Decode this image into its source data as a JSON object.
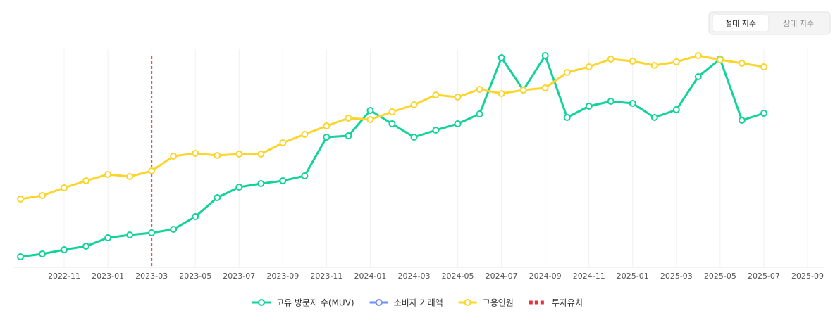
{
  "chart_data": {
    "type": "line",
    "toggle": {
      "options": [
        "절대 지수",
        "상대 지수"
      ],
      "active": 0
    },
    "x": [
      "2022-09",
      "2022-10",
      "2022-11",
      "2022-12",
      "2023-01",
      "2023-02",
      "2023-03",
      "2023-04",
      "2023-05",
      "2023-06",
      "2023-07",
      "2023-08",
      "2023-09",
      "2023-10",
      "2023-11",
      "2023-12",
      "2024-01",
      "2024-02",
      "2024-03",
      "2024-04",
      "2024-05",
      "2024-06",
      "2024-07",
      "2024-08",
      "2024-09",
      "2024-10",
      "2024-11",
      "2024-12",
      "2025-01",
      "2025-02",
      "2025-03",
      "2025-04",
      "2025-05",
      "2025-06",
      "2025-07"
    ],
    "xlim": [
      "2022-09",
      "2025-09"
    ],
    "xticks": [
      "2022-11",
      "2023-01",
      "2023-03",
      "2023-05",
      "2023-07",
      "2023-09",
      "2023-11",
      "2024-01",
      "2024-03",
      "2024-05",
      "2024-07",
      "2024-09",
      "2024-11",
      "2025-01",
      "2025-03",
      "2025-05",
      "2025-07",
      "2025-09"
    ],
    "ylim": [
      0,
      310
    ],
    "series": [
      {
        "name": "고유 방문자 수(MUV)",
        "color": "#12d39a",
        "values": [
          15,
          19,
          25,
          30,
          42,
          46,
          49,
          54,
          72,
          99,
          114,
          119,
          123,
          130,
          185,
          187,
          223,
          204,
          185,
          195,
          204,
          218,
          298,
          252,
          301,
          213,
          229,
          236,
          233,
          213,
          224,
          271,
          296,
          209,
          219
        ]
      },
      {
        "name": "소비자 거래액",
        "color": "#6e8ef5",
        "values": [
          null,
          null,
          null,
          null,
          null,
          null,
          null,
          null,
          null,
          null,
          null,
          null,
          null,
          null,
          null,
          null,
          null,
          null,
          null,
          null,
          null,
          null,
          null,
          null,
          null,
          null,
          null,
          null,
          null,
          null,
          null,
          null,
          null,
          null,
          null
        ]
      },
      {
        "name": "고용인원",
        "color": "#fcd52b",
        "values": [
          97,
          102,
          113,
          123,
          132,
          129,
          137,
          158,
          162,
          159,
          161,
          161,
          177,
          189,
          201,
          212,
          210,
          221,
          231,
          245,
          242,
          253,
          247,
          252,
          255,
          277,
          285,
          296,
          293,
          287,
          292,
          301,
          295,
          290,
          285
        ]
      }
    ],
    "annotation": {
      "x": "2023-03",
      "label": "투자유치",
      "color": "#e0333a"
    }
  }
}
